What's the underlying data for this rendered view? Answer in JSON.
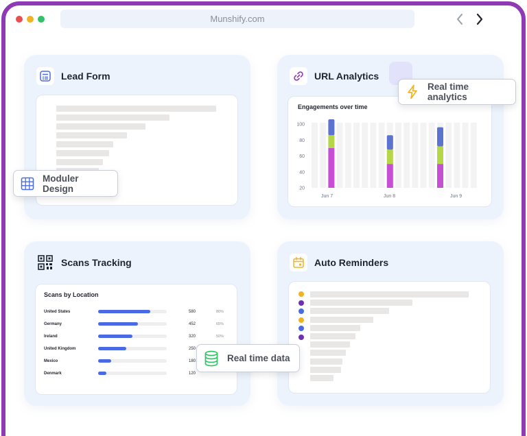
{
  "browser": {
    "url": "Munshify.com",
    "dots": [
      "#ea4f4f",
      "#f2b322",
      "#2fc466"
    ]
  },
  "cards": {
    "lead_form": {
      "title": "Lead Form",
      "line_fractions": [
        0.79,
        0.56,
        0.44,
        0.35,
        0.28,
        0.26,
        0.23,
        0.21
      ]
    },
    "url_analytics": {
      "title": "URL Analytics"
    },
    "scans_tracking": {
      "title": "Scans Tracking"
    },
    "auto_reminders": {
      "title": "Auto Reminders",
      "dot_colors": [
        "#f2b322",
        "#6e2fb0",
        "#4a6ae3",
        "#f2b322",
        "#4a6ae3",
        "#6e2fb0"
      ],
      "line_fractions": [
        0.88,
        0.57,
        0.44,
        0.35,
        0.28,
        0.25,
        0.22,
        0.2,
        0.18,
        0.17,
        0.13
      ]
    }
  },
  "badges": {
    "moduler": "Moduler Design",
    "realtime_analytics": "Real time analytics",
    "realtime_data": "Real time data"
  },
  "chart_data": [
    {
      "type": "bar",
      "title": "Engagements over time",
      "y_ticks": [
        100,
        80,
        60,
        40,
        20
      ],
      "ylim": [
        20,
        100
      ],
      "x_ticks": [
        "Jun 7",
        "Jun 8",
        "Jun 9"
      ],
      "grid": false,
      "stacked_bars": [
        {
          "label": "Jun 7",
          "segments": [
            50,
            16,
            20
          ]
        },
        {
          "label": "Jun 8",
          "segments": [
            30,
            18,
            18
          ]
        },
        {
          "label": "Jun 9",
          "segments": [
            30,
            22,
            24
          ]
        }
      ],
      "segment_colors": [
        "#c74fd4",
        "#b6d64a",
        "#5c74cf"
      ]
    },
    {
      "type": "table",
      "title": "Scans by Location",
      "rows": [
        {
          "country": "United States",
          "count": "580",
          "pct": "80%",
          "fill": 0.76
        },
        {
          "country": "Germany",
          "count": "452",
          "pct": "65%",
          "fill": 0.58
        },
        {
          "country": "Ireland",
          "count": "320",
          "pct": "50%",
          "fill": 0.5
        },
        {
          "country": "United Kingdom",
          "count": "250",
          "pct": "",
          "fill": 0.41
        },
        {
          "country": "Mexico",
          "count": "180",
          "pct": "",
          "fill": 0.19
        },
        {
          "country": "Denmark",
          "count": "120",
          "pct": "",
          "fill": 0.12
        }
      ]
    }
  ]
}
